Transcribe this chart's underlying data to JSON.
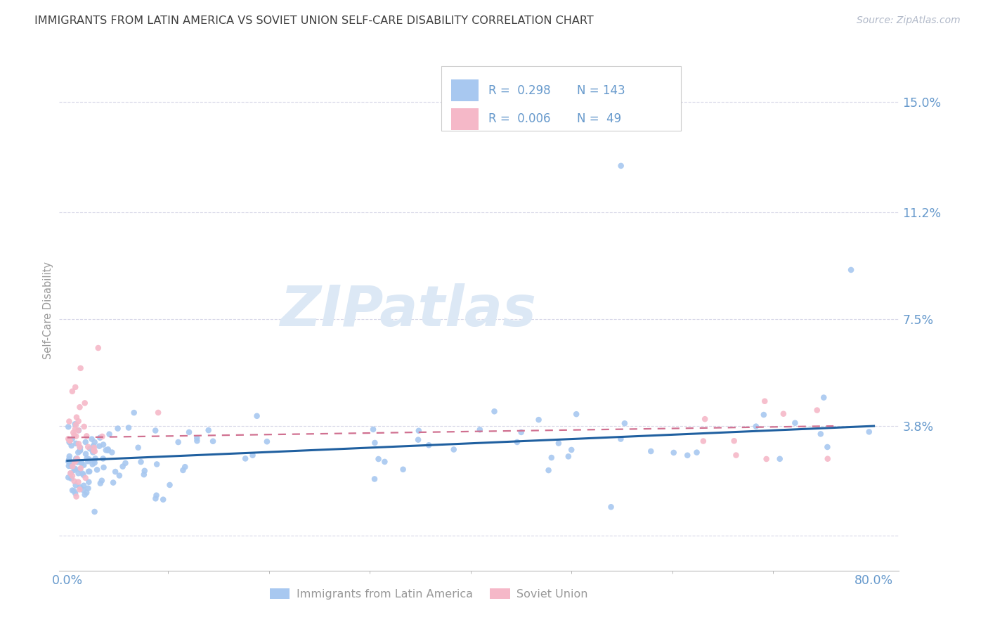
{
  "title": "IMMIGRANTS FROM LATIN AMERICA VS SOVIET UNION SELF-CARE DISABILITY CORRELATION CHART",
  "source": "Source: ZipAtlas.com",
  "ylabel": "Self-Care Disability",
  "watermark": "ZIPatlas",
  "blue_color": "#a8c8f0",
  "pink_color": "#f5b8c8",
  "line_blue": "#2060a0",
  "line_pink": "#d07090",
  "title_color": "#404040",
  "axis_label_color": "#6699cc",
  "ytick_color": "#6699cc",
  "watermark_color": "#dce8f5",
  "grid_color": "#d8d8e8",
  "legend_border_color": "#cccccc",
  "bottom_legend_color": "#999999"
}
